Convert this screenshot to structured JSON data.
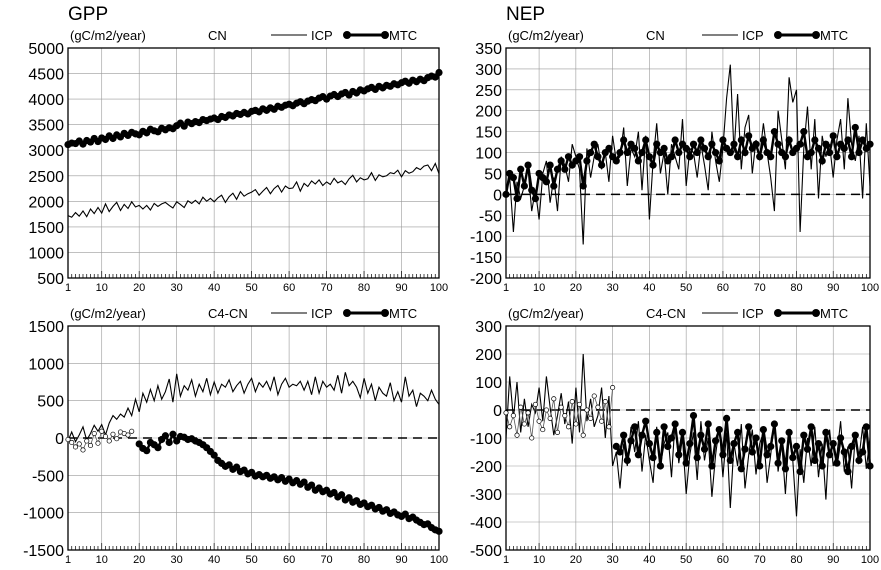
{
  "figure": {
    "left_title": "GPP",
    "right_title": "NEP",
    "legend_icp": "ICP",
    "legend_mtc": "MTC"
  },
  "chart_data": [
    {
      "type": "line",
      "title": "",
      "subtitle": "(gC/m2/year)",
      "scenario": "CN",
      "xlim": [
        1,
        100
      ],
      "ylim": [
        500,
        5000
      ],
      "yticks": [
        500,
        1000,
        1500,
        2000,
        2500,
        3000,
        3500,
        4000,
        4500,
        5000
      ],
      "xticks": [
        1,
        10,
        20,
        30,
        40,
        50,
        60,
        70,
        80,
        90,
        100
      ],
      "grid": true,
      "zero_line": false,
      "legend": "top-right",
      "series": [
        {
          "name": "ICP",
          "style": "thin",
          "x_start": 1,
          "values": [
            1720,
            1690,
            1780,
            1710,
            1810,
            1700,
            1850,
            1760,
            1880,
            1770,
            1950,
            1800,
            1900,
            1980,
            1820,
            1940,
            1860,
            1990,
            1890,
            1920,
            1850,
            1920,
            1830,
            1960,
            1900,
            1950,
            1980,
            1920,
            1870,
            1990,
            1940,
            1880,
            2010,
            1960,
            2020,
            1950,
            2080,
            2000,
            2060,
            1990,
            2070,
            2120,
            1980,
            2090,
            2160,
            2040,
            2190,
            2100,
            2150,
            2180,
            2230,
            2120,
            2200,
            2270,
            2150,
            2250,
            2310,
            2180,
            2300,
            2250,
            2260,
            2380,
            2200,
            2350,
            2290,
            2400,
            2340,
            2420,
            2310,
            2380,
            2330,
            2450,
            2360,
            2400,
            2330,
            2440,
            2510,
            2380,
            2460,
            2420,
            2440,
            2560,
            2410,
            2520,
            2480,
            2500,
            2560,
            2540,
            2610,
            2480,
            2600,
            2550,
            2580,
            2660,
            2620,
            2690,
            2710,
            2600,
            2740,
            2540
          ]
        },
        {
          "name": "MTC",
          "style": "thick-dots",
          "x_start": 1,
          "values": [
            3110,
            3140,
            3130,
            3180,
            3120,
            3190,
            3160,
            3230,
            3170,
            3240,
            3210,
            3280,
            3230,
            3300,
            3260,
            3330,
            3290,
            3350,
            3320,
            3300,
            3370,
            3340,
            3410,
            3380,
            3360,
            3430,
            3400,
            3440,
            3420,
            3480,
            3530,
            3470,
            3550,
            3520,
            3560,
            3540,
            3600,
            3580,
            3610,
            3630,
            3600,
            3660,
            3640,
            3690,
            3670,
            3720,
            3700,
            3740,
            3710,
            3760,
            3780,
            3750,
            3810,
            3780,
            3830,
            3800,
            3860,
            3840,
            3880,
            3900,
            3870,
            3920,
            3950,
            3910,
            3960,
            3990,
            3970,
            4020,
            4050,
            4000,
            4060,
            4090,
            4050,
            4100,
            4130,
            4080,
            4150,
            4120,
            4180,
            4160,
            4200,
            4230,
            4190,
            4250,
            4220,
            4270,
            4250,
            4300,
            4280,
            4320,
            4350,
            4310,
            4370,
            4340,
            4390,
            4360,
            4420,
            4450,
            4430,
            4520
          ]
        }
      ]
    },
    {
      "type": "line",
      "title": "",
      "subtitle": "(gC/m2/year)",
      "scenario": "CN",
      "xlim": [
        1,
        100
      ],
      "ylim": [
        -200,
        350
      ],
      "yticks": [
        -200,
        -150,
        -100,
        -50,
        0,
        50,
        100,
        150,
        200,
        250,
        300,
        350
      ],
      "xticks": [
        1,
        10,
        20,
        30,
        40,
        50,
        60,
        70,
        80,
        90,
        100
      ],
      "grid": true,
      "zero_line": true,
      "legend": "top-right",
      "series": [
        {
          "name": "ICP",
          "style": "thin",
          "x_start": 1,
          "values": [
            10,
            40,
            -90,
            30,
            -10,
            20,
            60,
            -40,
            10,
            -60,
            50,
            80,
            -20,
            40,
            -40,
            90,
            70,
            30,
            120,
            90,
            60,
            -120,
            110,
            40,
            90,
            120,
            60,
            100,
            30,
            140,
            80,
            90,
            160,
            20,
            110,
            90,
            150,
            10,
            140,
            -60,
            80,
            170,
            50,
            100,
            0,
            120,
            90,
            60,
            180,
            20,
            110,
            100,
            40,
            120,
            70,
            10,
            150,
            80,
            30,
            110,
            230,
            310,
            100,
            240,
            60,
            160,
            190,
            50,
            130,
            90,
            170,
            100,
            40,
            -40,
            200,
            130,
            60,
            280,
            220,
            250,
            -90,
            110,
            210,
            60,
            180,
            -10,
            140,
            90,
            120,
            40,
            130,
            180,
            60,
            230,
            120,
            80,
            140,
            -10,
            170,
            20
          ]
        },
        {
          "name": "MTC",
          "style": "thick-dots",
          "x_start": 1,
          "values": [
            0,
            50,
            40,
            -10,
            60,
            20,
            70,
            10,
            -10,
            50,
            40,
            30,
            70,
            20,
            60,
            80,
            60,
            90,
            70,
            80,
            90,
            20,
            80,
            100,
            120,
            90,
            70,
            100,
            110,
            90,
            80,
            100,
            130,
            100,
            120,
            110,
            80,
            100,
            130,
            90,
            70,
            120,
            100,
            110,
            80,
            90,
            130,
            100,
            120,
            110,
            90,
            120,
            100,
            130,
            110,
            90,
            120,
            100,
            80,
            130,
            110,
            100,
            120,
            90,
            130,
            100,
            140,
            110,
            120,
            90,
            130,
            100,
            90,
            150,
            120,
            100,
            90,
            130,
            100,
            110,
            120,
            150,
            90,
            100,
            130,
            110,
            80,
            120,
            100,
            140,
            90,
            120,
            110,
            130,
            90,
            160,
            100,
            130,
            110,
            120
          ]
        }
      ]
    },
    {
      "type": "line",
      "title": "",
      "subtitle": "(gC/m2/year)",
      "scenario": "C4-CN",
      "xlim": [
        1,
        100
      ],
      "ylim": [
        -1500,
        1500
      ],
      "yticks": [
        -1500,
        -1000,
        -500,
        0,
        500,
        1000,
        1500
      ],
      "xticks": [
        1,
        10,
        20,
        30,
        40,
        50,
        60,
        70,
        80,
        90,
        100
      ],
      "grid": true,
      "zero_line": true,
      "legend": "top-right",
      "series": [
        {
          "name": "ICP",
          "style": "thin",
          "x_start": 1,
          "values": [
            -40,
            80,
            -50,
            40,
            150,
            -30,
            60,
            170,
            90,
            180,
            40,
            200,
            300,
            250,
            320,
            280,
            400,
            300,
            520,
            350,
            600,
            480,
            650,
            500,
            700,
            520,
            620,
            790,
            480,
            860,
            560,
            700,
            640,
            780,
            560,
            720,
            620,
            800,
            580,
            750,
            600,
            720,
            680,
            780,
            620,
            700,
            760,
            600,
            720,
            800,
            620,
            740,
            680,
            760,
            640,
            820,
            580,
            720,
            800,
            680,
            720,
            700,
            760,
            640,
            760,
            580,
            820,
            600,
            760,
            680,
            720,
            640,
            840,
            600,
            880,
            700,
            760,
            680,
            540,
            800,
            600,
            720,
            500,
            680,
            600,
            560,
            740,
            500,
            620,
            480,
            820,
            560,
            640,
            420,
            600,
            560,
            500,
            640,
            520,
            450
          ]
        },
        {
          "name": "MTC",
          "style": "thick-dots",
          "x_start": 20,
          "values": [
            -80,
            -140,
            -170,
            -60,
            -90,
            -130,
            -20,
            30,
            -60,
            50,
            -40,
            20,
            10,
            -20,
            -10,
            -40,
            -60,
            -90,
            -130,
            -180,
            -230,
            -300,
            -340,
            -380,
            -360,
            -420,
            -390,
            -450,
            -430,
            -480,
            -460,
            -510,
            -490,
            -520,
            -500,
            -540,
            -520,
            -560,
            -530,
            -580,
            -550,
            -600,
            -570,
            -620,
            -590,
            -660,
            -630,
            -700,
            -670,
            -720,
            -700,
            -750,
            -730,
            -790,
            -760,
            -830,
            -800,
            -860,
            -840,
            -890,
            -870,
            -920,
            -900,
            -950,
            -930,
            -980,
            -960,
            -1010,
            -990,
            -1030,
            -1050,
            -1020,
            -1080,
            -1060,
            -1100,
            -1130,
            -1160,
            -1150,
            -1200,
            -1230,
            -1250
          ]
        },
        {
          "name": "",
          "style": "thin-open-dots",
          "x_start": 1,
          "values": [
            -20,
            -60,
            -120,
            -80,
            -160,
            -40,
            -100,
            60,
            -70,
            90,
            20,
            -40,
            50,
            -10,
            80,
            60,
            40,
            90
          ]
        }
      ]
    },
    {
      "type": "line",
      "title": "",
      "subtitle": "(gC/m2/year)",
      "scenario": "C4-CN",
      "xlim": [
        1,
        100
      ],
      "ylim": [
        -500,
        300
      ],
      "yticks": [
        -500,
        -400,
        -300,
        -200,
        -100,
        0,
        100,
        200,
        300
      ],
      "xticks": [
        1,
        10,
        20,
        30,
        40,
        50,
        60,
        70,
        80,
        90,
        100
      ],
      "grid": true,
      "zero_line": true,
      "legend": "top-right",
      "series": [
        {
          "name": "ICP",
          "style": "thin",
          "x_start": 1,
          "values": [
            -100,
            120,
            -30,
            100,
            -80,
            40,
            -60,
            20,
            -10,
            80,
            -40,
            120,
            10,
            -90,
            -20,
            60,
            -50,
            30,
            -120,
            80,
            -80,
            200,
            -40,
            40,
            -60,
            -20,
            80,
            -100,
            50,
            -200,
            -150,
            -280,
            -120,
            -200,
            -60,
            -150,
            -40,
            -220,
            -90,
            -180,
            -260,
            -60,
            -200,
            -120,
            -80,
            -240,
            -40,
            -190,
            -100,
            -300,
            -160,
            -80,
            -250,
            -40,
            -180,
            -100,
            -310,
            -160,
            -60,
            -240,
            -80,
            -350,
            -120,
            -200,
            -50,
            -280,
            -160,
            -70,
            -230,
            -120,
            -80,
            -260,
            -160,
            -40,
            -220,
            -120,
            -300,
            -90,
            -180,
            -380,
            -140,
            -260,
            -100,
            -200,
            -60,
            -240,
            -120,
            -320,
            -70,
            -200,
            -160,
            -40,
            -220,
            -130,
            -280,
            -90,
            -170,
            -60,
            -210,
            -100
          ]
        },
        {
          "name": "MTC",
          "style": "thick-dots",
          "x_start": 31,
          "values": [
            -130,
            -150,
            -90,
            -180,
            -110,
            -60,
            -160,
            -90,
            -40,
            -120,
            -170,
            -80,
            -200,
            -60,
            -130,
            -100,
            -50,
            -160,
            -80,
            -190,
            -120,
            -20,
            -170,
            -90,
            -140,
            -50,
            -200,
            -110,
            -70,
            -160,
            -30,
            -180,
            -120,
            -80,
            -210,
            -140,
            -60,
            -150,
            -100,
            -200,
            -70,
            -160,
            -130,
            -50,
            -190,
            -110,
            -210,
            -80,
            -170,
            -130,
            -220,
            -90,
            -140,
            -60,
            -180,
            -120,
            -200,
            -80,
            -160,
            -120,
            -190,
            -100,
            -150,
            -220,
            -130,
            -90,
            -180,
            -150,
            -60,
            -200
          ]
        },
        {
          "name": "",
          "style": "thin-open-dots",
          "x_start": 1,
          "values": [
            -10,
            -60,
            -20,
            -90,
            10,
            -50,
            -10,
            -100,
            20,
            -40,
            -70,
            0,
            -30,
            40,
            -80,
            10,
            -20,
            -60,
            30,
            -50,
            20,
            -90,
            0,
            -30,
            50,
            10,
            -40,
            30,
            -60,
            80
          ]
        }
      ]
    }
  ]
}
